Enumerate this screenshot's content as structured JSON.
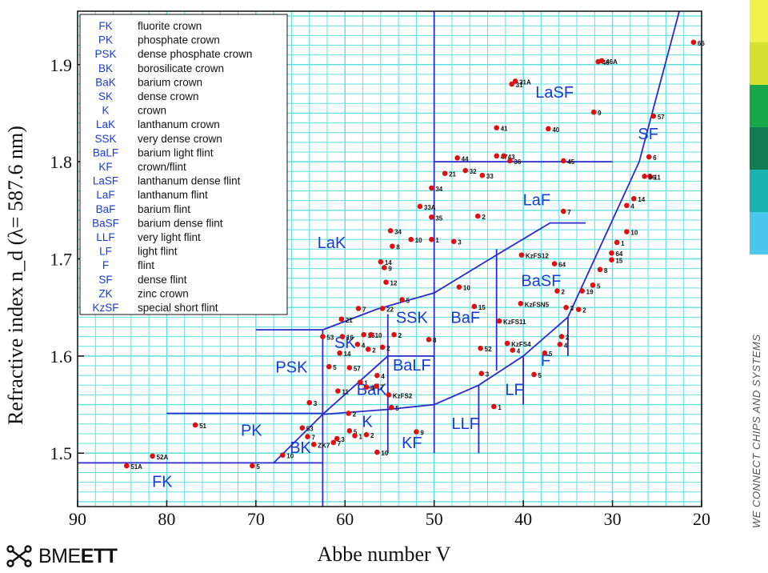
{
  "footer": {
    "logo_brand": "BME",
    "logo_bold": "ETT",
    "side_text": "WE CONNECT CHIPS AND SYSTEMS"
  },
  "colors": {
    "grid": "#5ee0e0",
    "boundary": "#2a2ad0",
    "point": "#dd1111",
    "region_label": "#1a3ad6",
    "strip": [
      "#f0f04a",
      "#d6e030",
      "#18a84a",
      "#127a55",
      "#19b4b0",
      "#4cc6ec"
    ]
  },
  "chart_data": {
    "type": "scatter",
    "title": "",
    "xlabel": "Abbe number V",
    "ylabel": "Refractive index n_d (λ= 587.6 nm)",
    "xlim": [
      90,
      20
    ],
    "ylim": [
      1.445,
      1.955
    ],
    "x_reversed": true,
    "grid": true,
    "legend_position": "top-left",
    "xticks": [
      "90",
      "80",
      "70",
      "60",
      "50",
      "40",
      "30",
      "20"
    ],
    "yticks": [
      "1.5",
      "1.6",
      "1.7",
      "1.8",
      "1.9"
    ],
    "legend": [
      {
        "code": "FK",
        "name": "fluorite crown"
      },
      {
        "code": "PK",
        "name": "phosphate crown"
      },
      {
        "code": "PSK",
        "name": "dense phosphate crown"
      },
      {
        "code": "BK",
        "name": "borosilicate crown"
      },
      {
        "code": "BaK",
        "name": "barium crown"
      },
      {
        "code": "SK",
        "name": "dense crown"
      },
      {
        "code": "K",
        "name": "crown"
      },
      {
        "code": "LaK",
        "name": "lanthanum crown"
      },
      {
        "code": "SSK",
        "name": "very dense crown"
      },
      {
        "code": "BaLF",
        "name": "barium light flint"
      },
      {
        "code": "KF",
        "name": "crown/flint"
      },
      {
        "code": "LaSF",
        "name": "lanthanum dense flint"
      },
      {
        "code": "LaF",
        "name": "lanthanum flint"
      },
      {
        "code": "BaF",
        "name": "barium flint"
      },
      {
        "code": "BaSF",
        "name": "barium dense flint"
      },
      {
        "code": "LLF",
        "name": "very light flint"
      },
      {
        "code": "LF",
        "name": "light flint"
      },
      {
        "code": "F",
        "name": "flint"
      },
      {
        "code": "SF",
        "name": "dense flint"
      },
      {
        "code": "ZK",
        "name": "zinc crown"
      },
      {
        "code": "KzSF",
        "name": "special short flint"
      }
    ],
    "regions": [
      {
        "label": "FK",
        "x": 80.5,
        "y": 1.465
      },
      {
        "label": "PK",
        "x": 70.5,
        "y": 1.518
      },
      {
        "label": "BK",
        "x": 65,
        "y": 1.5
      },
      {
        "label": "PSK",
        "x": 66,
        "y": 1.583
      },
      {
        "label": "SK",
        "x": 60,
        "y": 1.608
      },
      {
        "label": "BaK",
        "x": 57,
        "y": 1.56
      },
      {
        "label": "K",
        "x": 57.5,
        "y": 1.527
      },
      {
        "label": "LaK",
        "x": 61.5,
        "y": 1.711
      },
      {
        "label": "SSK",
        "x": 52.5,
        "y": 1.634
      },
      {
        "label": "BaLF",
        "x": 52.5,
        "y": 1.585
      },
      {
        "label": "KF",
        "x": 52.5,
        "y": 1.505
      },
      {
        "label": "BaF",
        "x": 46.5,
        "y": 1.634
      },
      {
        "label": "LLF",
        "x": 46.5,
        "y": 1.525
      },
      {
        "label": "LF",
        "x": 41,
        "y": 1.56
      },
      {
        "label": "F",
        "x": 37.5,
        "y": 1.59
      },
      {
        "label": "BaSF",
        "x": 38,
        "y": 1.672
      },
      {
        "label": "LaF",
        "x": 38.5,
        "y": 1.755
      },
      {
        "label": "LaSF",
        "x": 36.5,
        "y": 1.866
      },
      {
        "label": "SF",
        "x": 26,
        "y": 1.823
      }
    ],
    "points": [
      {
        "x": 84.5,
        "y": 1.487,
        "label": "51A"
      },
      {
        "x": 81.6,
        "y": 1.497,
        "label": "52A"
      },
      {
        "x": 76.8,
        "y": 1.529,
        "label": "51"
      },
      {
        "x": 70.4,
        "y": 1.487,
        "label": "5"
      },
      {
        "x": 67,
        "y": 1.498,
        "label": "10"
      },
      {
        "x": 64.2,
        "y": 1.517,
        "label": "7"
      },
      {
        "x": 64.8,
        "y": 1.526,
        "label": "53"
      },
      {
        "x": 64,
        "y": 1.552,
        "label": "3"
      },
      {
        "x": 63.5,
        "y": 1.509,
        "label": "ZK7"
      },
      {
        "x": 61.3,
        "y": 1.511,
        "label": "7"
      },
      {
        "x": 60.9,
        "y": 1.515,
        "label": "3"
      },
      {
        "x": 59.5,
        "y": 1.523,
        "label": "5"
      },
      {
        "x": 59.6,
        "y": 1.541,
        "label": "2"
      },
      {
        "x": 56.4,
        "y": 1.501,
        "label": "10"
      },
      {
        "x": 58.9,
        "y": 1.518,
        "label": "1"
      },
      {
        "x": 57.6,
        "y": 1.519,
        "label": "2"
      },
      {
        "x": 60.8,
        "y": 1.564,
        "label": "11"
      },
      {
        "x": 58.3,
        "y": 1.573,
        "label": "1"
      },
      {
        "x": 57.6,
        "y": 1.568,
        "label": "4"
      },
      {
        "x": 56.5,
        "y": 1.569,
        "label": "7"
      },
      {
        "x": 56.4,
        "y": 1.58,
        "label": "4"
      },
      {
        "x": 55.1,
        "y": 1.56,
        "label": "KzFS2"
      },
      {
        "x": 54.8,
        "y": 1.547,
        "label": "5"
      },
      {
        "x": 52,
        "y": 1.522,
        "label": "9"
      },
      {
        "x": 61.8,
        "y": 1.589,
        "label": "5"
      },
      {
        "x": 59.5,
        "y": 1.588,
        "label": "57"
      },
      {
        "x": 60.6,
        "y": 1.603,
        "label": "14"
      },
      {
        "x": 62.5,
        "y": 1.62,
        "label": "53"
      },
      {
        "x": 60.3,
        "y": 1.62,
        "label": "16"
      },
      {
        "x": 58.6,
        "y": 1.612,
        "label": "4"
      },
      {
        "x": 57.9,
        "y": 1.622,
        "label": "15"
      },
      {
        "x": 57.1,
        "y": 1.622,
        "label": "10"
      },
      {
        "x": 57.4,
        "y": 1.607,
        "label": "2"
      },
      {
        "x": 55.8,
        "y": 1.609,
        "label": "2"
      },
      {
        "x": 54.5,
        "y": 1.622,
        "label": "2"
      },
      {
        "x": 60.4,
        "y": 1.638,
        "label": "21"
      },
      {
        "x": 58.5,
        "y": 1.649,
        "label": "7"
      },
      {
        "x": 55.8,
        "y": 1.649,
        "label": "22"
      },
      {
        "x": 53.6,
        "y": 1.658,
        "label": "5"
      },
      {
        "x": 50.6,
        "y": 1.617,
        "label": "8"
      },
      {
        "x": 55.4,
        "y": 1.676,
        "label": "12"
      },
      {
        "x": 55.6,
        "y": 1.691,
        "label": "9"
      },
      {
        "x": 56,
        "y": 1.697,
        "label": "14"
      },
      {
        "x": 54.7,
        "y": 1.713,
        "label": "8"
      },
      {
        "x": 54.9,
        "y": 1.729,
        "label": "34"
      },
      {
        "x": 52.6,
        "y": 1.72,
        "label": "10"
      },
      {
        "x": 51.6,
        "y": 1.754,
        "label": "33A"
      },
      {
        "x": 50.3,
        "y": 1.72,
        "label": "1"
      },
      {
        "x": 50.3,
        "y": 1.743,
        "label": "35"
      },
      {
        "x": 50.3,
        "y": 1.773,
        "label": "34"
      },
      {
        "x": 47.8,
        "y": 1.718,
        "label": "3"
      },
      {
        "x": 47.2,
        "y": 1.671,
        "label": "10"
      },
      {
        "x": 45.5,
        "y": 1.651,
        "label": "15"
      },
      {
        "x": 44.8,
        "y": 1.608,
        "label": "52"
      },
      {
        "x": 44.7,
        "y": 1.582,
        "label": "3"
      },
      {
        "x": 43.3,
        "y": 1.548,
        "label": "1"
      },
      {
        "x": 42.7,
        "y": 1.636,
        "label": "KzFS11"
      },
      {
        "x": 41.8,
        "y": 1.613,
        "label": "KzFS4"
      },
      {
        "x": 41.2,
        "y": 1.606,
        "label": "4"
      },
      {
        "x": 40.3,
        "y": 1.654,
        "label": "KzFSN5"
      },
      {
        "x": 40.2,
        "y": 1.704,
        "label": "KzFS12"
      },
      {
        "x": 36.5,
        "y": 1.695,
        "label": "64"
      },
      {
        "x": 36.2,
        "y": 1.667,
        "label": "2"
      },
      {
        "x": 38.8,
        "y": 1.581,
        "label": "5"
      },
      {
        "x": 37.6,
        "y": 1.603,
        "label": "5"
      },
      {
        "x": 35.9,
        "y": 1.612,
        "label": "4"
      },
      {
        "x": 35.7,
        "y": 1.62,
        "label": "2"
      },
      {
        "x": 35.2,
        "y": 1.65,
        "label": "3"
      },
      {
        "x": 33.8,
        "y": 1.648,
        "label": "2"
      },
      {
        "x": 33.4,
        "y": 1.667,
        "label": "19"
      },
      {
        "x": 32.2,
        "y": 1.673,
        "label": "5"
      },
      {
        "x": 31.4,
        "y": 1.689,
        "label": "8"
      },
      {
        "x": 35.5,
        "y": 1.749,
        "label": "7"
      },
      {
        "x": 45.1,
        "y": 1.744,
        "label": "2"
      },
      {
        "x": 48.8,
        "y": 1.788,
        "label": "21"
      },
      {
        "x": 47.4,
        "y": 1.804,
        "label": "44"
      },
      {
        "x": 46.5,
        "y": 1.791,
        "label": "32"
      },
      {
        "x": 44.6,
        "y": 1.786,
        "label": "33"
      },
      {
        "x": 43,
        "y": 1.806,
        "label": "47"
      },
      {
        "x": 42.2,
        "y": 1.806,
        "label": "43"
      },
      {
        "x": 41.5,
        "y": 1.801,
        "label": "36"
      },
      {
        "x": 35.5,
        "y": 1.801,
        "label": "45"
      },
      {
        "x": 43,
        "y": 1.835,
        "label": "41"
      },
      {
        "x": 37.2,
        "y": 1.834,
        "label": "40"
      },
      {
        "x": 41.3,
        "y": 1.88,
        "label": "31"
      },
      {
        "x": 40.9,
        "y": 1.883,
        "label": "31A"
      },
      {
        "x": 32.1,
        "y": 1.851,
        "label": "9"
      },
      {
        "x": 31.6,
        "y": 1.903,
        "label": "46"
      },
      {
        "x": 31.2,
        "y": 1.904,
        "label": "46A"
      },
      {
        "x": 20.9,
        "y": 1.923,
        "label": "66"
      },
      {
        "x": 25.4,
        "y": 1.847,
        "label": "57"
      },
      {
        "x": 25.9,
        "y": 1.805,
        "label": "6"
      },
      {
        "x": 25.8,
        "y": 1.785,
        "label": "11"
      },
      {
        "x": 26.4,
        "y": 1.785,
        "label": "56"
      },
      {
        "x": 27.6,
        "y": 1.762,
        "label": "14"
      },
      {
        "x": 28.4,
        "y": 1.755,
        "label": "4"
      },
      {
        "x": 28.4,
        "y": 1.728,
        "label": "10"
      },
      {
        "x": 29.5,
        "y": 1.717,
        "label": "1"
      },
      {
        "x": 30.1,
        "y": 1.699,
        "label": "15"
      },
      {
        "x": 30.1,
        "y": 1.706,
        "label": "64"
      }
    ]
  }
}
